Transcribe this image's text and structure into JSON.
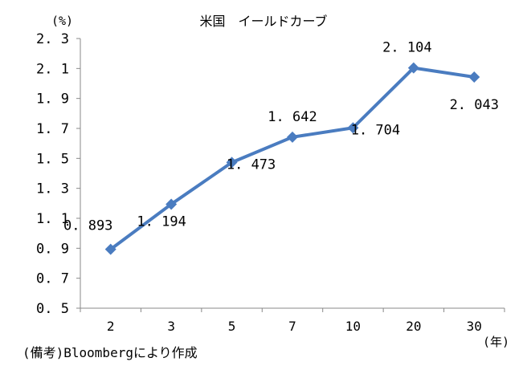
{
  "chart_data": {
    "type": "line",
    "title": "米国　イールドカーブ",
    "y_unit_label": "(%)",
    "x_unit_label": "(年)",
    "source_note": "(備考)Bloombergにより作成",
    "categories": [
      "2",
      "3",
      "5",
      "7",
      "10",
      "20",
      "30"
    ],
    "series": [
      {
        "name": "",
        "values": [
          0.893,
          1.194,
          1.473,
          1.642,
          1.704,
          2.104,
          2.043
        ],
        "data_labels": [
          "0.893",
          "1.194",
          "1.473",
          "1.642",
          "1.704",
          "2.104",
          "2.043"
        ]
      }
    ],
    "ylim": [
      0.5,
      2.3
    ],
    "y_ticks": [
      "0.5",
      "0.7",
      "0.9",
      "1.1",
      "1.3",
      "1.5",
      "1.7",
      "1.9",
      "2.1",
      "2.3"
    ],
    "grid": false,
    "marker": "diamond",
    "line_color": "#4a7cc0",
    "axis_color": "#888888"
  }
}
